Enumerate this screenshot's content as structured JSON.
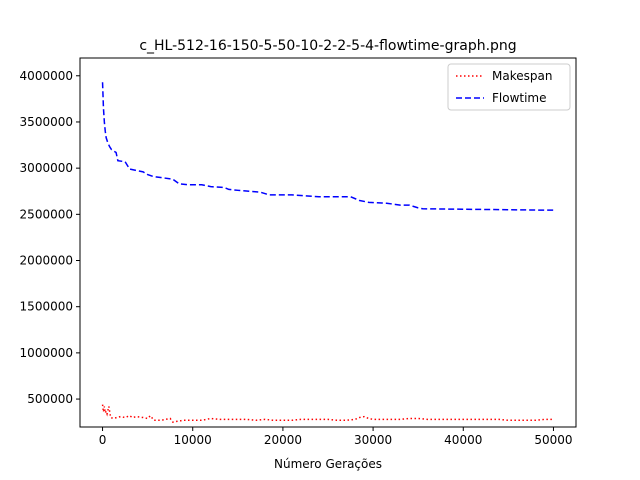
{
  "chart_data": {
    "type": "line",
    "title": "c_HL-512-16-150-5-50-10-2-2-5-4-flowtime-graph.png",
    "xlabel": "Número Gerações",
    "ylabel": "",
    "xlim": [
      -2500,
      52500
    ],
    "ylim": [
      197500,
      4192500
    ],
    "xticks": [
      0,
      10000,
      20000,
      30000,
      40000,
      50000
    ],
    "xtick_labels": [
      "0",
      "10000",
      "20000",
      "30000",
      "40000",
      "50000"
    ],
    "yticks": [
      500000,
      1000000,
      1500000,
      2000000,
      2500000,
      3000000,
      3500000,
      4000000
    ],
    "ytick_labels": [
      "500000",
      "1000000",
      "1500000",
      "2000000",
      "2500000",
      "3000000",
      "3500000",
      "4000000"
    ],
    "grid": false,
    "legend_position": "top-right",
    "series": [
      {
        "name": "Makespan",
        "color": "#ff0000",
        "style": "dotted",
        "x": [
          0,
          100,
          200,
          300,
          400,
          500,
          700,
          900,
          1200,
          1600,
          2000,
          2500,
          3000,
          3300,
          3800,
          4500,
          5000,
          5300,
          5700,
          6500,
          7500,
          7800,
          8300,
          9000,
          10000,
          11000,
          12000,
          13000,
          14000,
          15000,
          16000,
          17000,
          18000,
          19000,
          20000,
          21000,
          22000,
          23000,
          24000,
          25000,
          26000,
          27000,
          28000,
          28500,
          29000,
          29500,
          30000,
          31000,
          32000,
          33000,
          34000,
          35000,
          36000,
          37000,
          38000,
          39000,
          40000,
          41000,
          42000,
          43000,
          44000,
          45000,
          46000,
          47000,
          48000,
          49000,
          50000
        ],
        "y": [
          440000,
          360000,
          420000,
          350000,
          370000,
          340000,
          420000,
          300000,
          290000,
          300000,
          310000,
          300000,
          320000,
          300000,
          310000,
          300000,
          290000,
          320000,
          270000,
          270000,
          290000,
          250000,
          260000,
          270000,
          270000,
          270000,
          290000,
          280000,
          280000,
          280000,
          280000,
          270000,
          280000,
          270000,
          270000,
          270000,
          280000,
          280000,
          280000,
          280000,
          270000,
          270000,
          280000,
          300000,
          310000,
          290000,
          280000,
          280000,
          280000,
          280000,
          290000,
          290000,
          280000,
          280000,
          280000,
          280000,
          280000,
          280000,
          280000,
          280000,
          280000,
          270000,
          270000,
          270000,
          270000,
          280000,
          280000
        ]
      },
      {
        "name": "Flowtime",
        "color": "#0000ff",
        "style": "dashed",
        "x": [
          0,
          100,
          200,
          300,
          400,
          600,
          800,
          1000,
          1500,
          1700,
          2500,
          3000,
          4500,
          5000,
          5600,
          7800,
          8500,
          9500,
          11000,
          12000,
          13500,
          14000,
          15000,
          17500,
          18500,
          21000,
          22500,
          24000,
          27500,
          28500,
          29500,
          31500,
          33000,
          34000,
          35000,
          35500,
          45000,
          49000,
          50000
        ],
        "y": [
          3930000,
          3650000,
          3500000,
          3400000,
          3330000,
          3270000,
          3230000,
          3200000,
          3170000,
          3080000,
          3070000,
          2990000,
          2960000,
          2930000,
          2910000,
          2880000,
          2830000,
          2820000,
          2820000,
          2800000,
          2790000,
          2770000,
          2760000,
          2740000,
          2710000,
          2710000,
          2700000,
          2690000,
          2690000,
          2650000,
          2630000,
          2620000,
          2600000,
          2600000,
          2570000,
          2560000,
          2550000,
          2545000,
          2545000
        ]
      }
    ]
  }
}
